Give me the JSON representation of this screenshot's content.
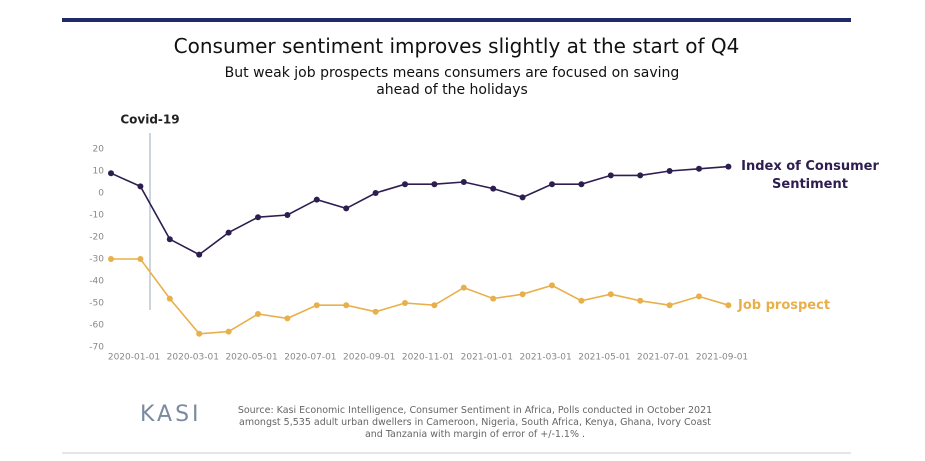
{
  "chart_data": {
    "type": "line",
    "title": "Consumer sentiment improves slightly at the start of Q4",
    "subtitle": "But weak job prospects means consumers are focused on saving ahead of the holidays",
    "annotation": "Covid-19",
    "categories": [
      "2020-01-01",
      null,
      "2020-03-01",
      null,
      "2020-05-01",
      null,
      "2020-07-01",
      null,
      "2020-09-01",
      null,
      "2020-11-01",
      null,
      "2021-01-01",
      null,
      "2021-03-01",
      null,
      "2021-05-01",
      null,
      "2021-07-01",
      null,
      "2021-09-01",
      null
    ],
    "series": [
      {
        "name": "Index of Consumer Sentiment",
        "color": "#2d1e4f",
        "values": [
          9,
          3,
          -21,
          -28,
          -18,
          -11,
          -10,
          -3,
          -7,
          0,
          4,
          4,
          5,
          2,
          -2,
          4,
          4,
          8,
          8,
          10,
          11,
          12
        ]
      },
      {
        "name": "Job prospect",
        "color": "#e8b04b",
        "values": [
          -30,
          -30,
          -48,
          -64,
          -63,
          -55,
          -57,
          -51,
          -51,
          -54,
          -50,
          -51,
          -43,
          -48,
          -46,
          -42,
          -49,
          -46,
          -49,
          -51,
          -47,
          -51
        ]
      }
    ],
    "ylim": [
      -70,
      20
    ],
    "yticks": [
      -70,
      -60,
      -50,
      -40,
      -30,
      -20,
      -10,
      0,
      10,
      20
    ],
    "grid": false,
    "source": "Source: Kasi Economic Intelligence, Consumer Sentiment in Africa, Polls conducted in October 2021 amongst 5,535 adult urban dwellers in Cameroon, Nigeria, South Africa, Kenya, Ghana, Ivory Coast and Tanzania with margin of error of +/-1.1% .",
    "logo": "KASI"
  }
}
